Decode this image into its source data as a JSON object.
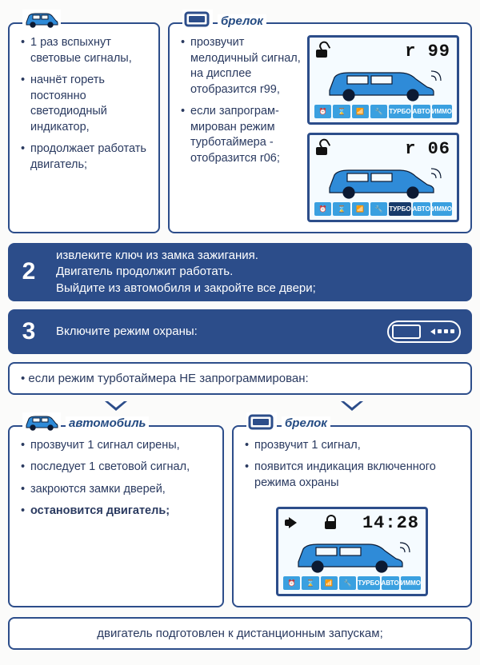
{
  "colors": {
    "border": "#2c4d8a",
    "text": "#2a3a60",
    "stepBg": "#2c4d8a",
    "carFill": "#2f8bd8",
    "carStroke": "#0c1a33",
    "lcdBg": "#f5fbff"
  },
  "labels": {
    "brelok": "брелок",
    "avtomobil": "автомобиль"
  },
  "row1": {
    "left_items": [
      "1 раз вспыхнут световые сигналы,",
      "начнёт гореть постоянно светодиодный индикатор,",
      "продолжает работать двигатель;"
    ],
    "right_items": [
      "прозвучит мелодичный сигнал, на дисплее отобразится r99,",
      "если запрограм-мирован режим турботаймера - отобразится r06;"
    ]
  },
  "lcd": {
    "strip_chips": [
      {
        "label": "⏰",
        "bg": "#3aa0e0"
      },
      {
        "label": "⌛",
        "bg": "#3aa0e0"
      },
      {
        "label": "📶",
        "bg": "#3aa0e0"
      },
      {
        "label": "🔧",
        "bg": "#3aa0e0"
      },
      {
        "label": "ТУРБО",
        "bg": "#3aa0e0"
      },
      {
        "label": "АВТО",
        "bg": "#3aa0e0"
      },
      {
        "label": "ИММО",
        "bg": "#3aa0e0"
      }
    ],
    "screens_row1": [
      {
        "digits": "r 99",
        "lock": "open",
        "turbo_hl": false
      },
      {
        "digits": "r 06",
        "lock": "open",
        "turbo_hl": true
      }
    ],
    "screen_row3": {
      "digits": "14:28",
      "lock": "closed",
      "horn": true
    }
  },
  "step2": {
    "num": "2",
    "lines": [
      "извлеките ключ из замка зажигания.",
      "Двигатель продолжит работать.",
      "Выйдите из автомобиля и закройте все двери;"
    ]
  },
  "step3": {
    "num": "3",
    "text": "Включите режим охраны:"
  },
  "cond_note": "если режим турботаймера НЕ запрограммирован:",
  "row3": {
    "left_items": [
      {
        "t": "прозвучит 1 сигнал сирены,",
        "b": false
      },
      {
        "t": "последует 1 световой сигнал,",
        "b": false
      },
      {
        "t": "закроются замки дверей,",
        "b": false
      },
      {
        "t": "остановится двигатель;",
        "b": true
      }
    ],
    "right_items": [
      "прозвучит 1 сигнал,",
      "появится индикация включенного режима охраны"
    ]
  },
  "footer": "двигатель подготовлен к дистанционным запускам;"
}
